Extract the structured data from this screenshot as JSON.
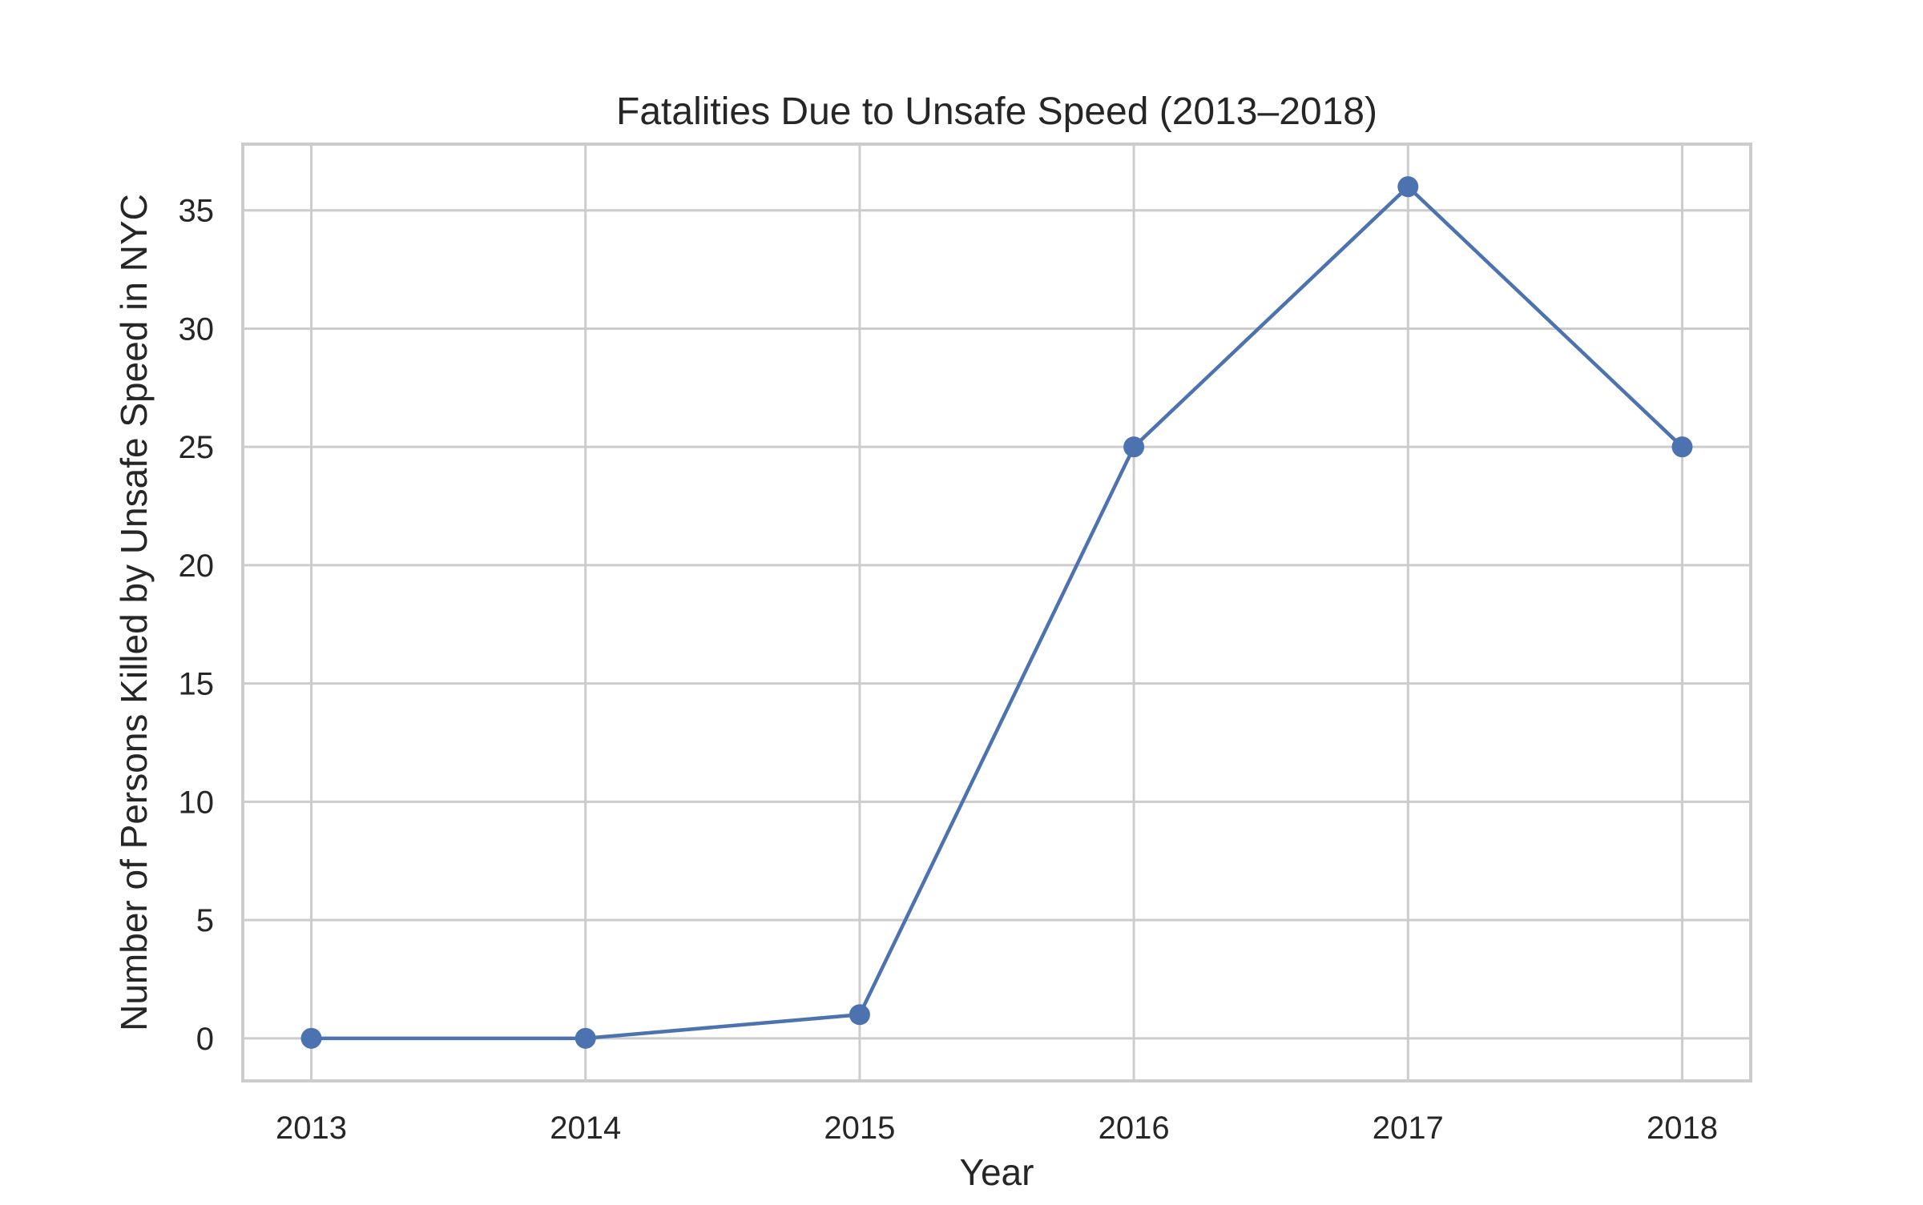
{
  "colors": {
    "series": "#4c72b0",
    "grid": "#cccccc",
    "text": "#262626"
  },
  "chart_data": {
    "type": "line",
    "title": "Fatalities Due to Unsafe Speed (2013–2018)",
    "xlabel": "Year",
    "ylabel": "Number of Persons Killed by Unsafe Speed in NYC",
    "x": [
      2013,
      2014,
      2015,
      2016,
      2017,
      2018
    ],
    "x_tick_labels": [
      "2013",
      "2014",
      "2015",
      "2016",
      "2017",
      "2018"
    ],
    "xlim": [
      2012.75,
      2018.25
    ],
    "ylim": [
      -1.8,
      37.8
    ],
    "y_ticks": [
      0,
      5,
      10,
      15,
      20,
      25,
      30,
      35
    ],
    "y_tick_labels": [
      "0",
      "5",
      "10",
      "15",
      "20",
      "25",
      "30",
      "35"
    ],
    "grid": true,
    "marker": "circle",
    "series": [
      {
        "values": [
          0,
          0,
          1,
          25,
          36,
          25
        ]
      }
    ]
  }
}
